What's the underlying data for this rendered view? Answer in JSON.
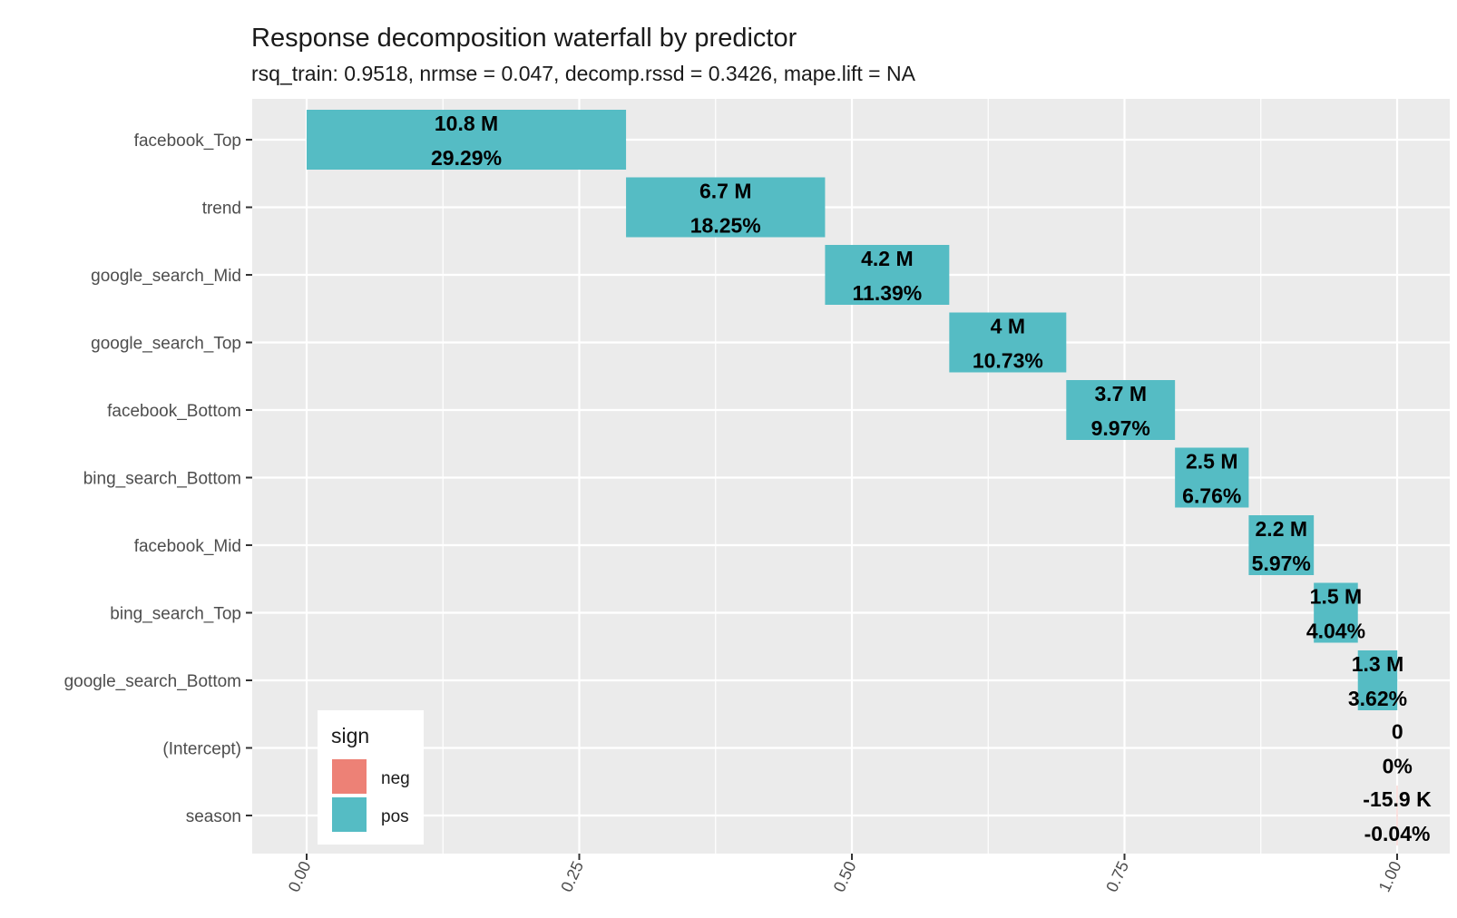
{
  "chart_data": {
    "type": "bar",
    "orientation": "horizontal-waterfall",
    "title": "Response decomposition waterfall by predictor",
    "subtitle": "rsq_train: 0.9518, nrmse = 0.047, decomp.rssd = 0.3426, mape.lift = NA",
    "xlabel": "",
    "ylabel": "",
    "xlim": [
      0,
      1
    ],
    "x_ticks": [
      "0.00",
      "0.25",
      "0.50",
      "0.75",
      "1.00"
    ],
    "grid": true,
    "legend": {
      "title": "sign",
      "position": "bottom-left",
      "entries": [
        {
          "label": "neg",
          "color": "#ED8176"
        },
        {
          "label": "pos",
          "color": "#55BCC4"
        }
      ]
    },
    "categories": [
      "facebook_Top",
      "trend",
      "google_search_Mid",
      "google_search_Top",
      "facebook_Bottom",
      "bing_search_Bottom",
      "facebook_Mid",
      "bing_search_Top",
      "google_search_Bottom",
      "(Intercept)",
      "season"
    ],
    "series": [
      {
        "name": "sign",
        "bars": [
          {
            "predictor": "facebook_Top",
            "start": 0.0,
            "end": 0.2929,
            "value_label": "10.8 M",
            "pct_label": "29.29%",
            "sign": "pos"
          },
          {
            "predictor": "trend",
            "start": 0.2929,
            "end": 0.4754,
            "value_label": "6.7 M",
            "pct_label": "18.25%",
            "sign": "pos"
          },
          {
            "predictor": "google_search_Mid",
            "start": 0.4754,
            "end": 0.5893,
            "value_label": "4.2 M",
            "pct_label": "11.39%",
            "sign": "pos"
          },
          {
            "predictor": "google_search_Top",
            "start": 0.5893,
            "end": 0.6966,
            "value_label": "4 M",
            "pct_label": "10.73%",
            "sign": "pos"
          },
          {
            "predictor": "facebook_Bottom",
            "start": 0.6966,
            "end": 0.7963,
            "value_label": "3.7 M",
            "pct_label": "9.97%",
            "sign": "pos"
          },
          {
            "predictor": "bing_search_Bottom",
            "start": 0.7963,
            "end": 0.8639,
            "value_label": "2.5 M",
            "pct_label": "6.76%",
            "sign": "pos"
          },
          {
            "predictor": "facebook_Mid",
            "start": 0.8639,
            "end": 0.9236,
            "value_label": "2.2 M",
            "pct_label": "5.97%",
            "sign": "pos"
          },
          {
            "predictor": "bing_search_Top",
            "start": 0.9236,
            "end": 0.964,
            "value_label": "1.5 M",
            "pct_label": "4.04%",
            "sign": "pos"
          },
          {
            "predictor": "google_search_Bottom",
            "start": 0.964,
            "end": 1.0002,
            "value_label": "1.3 M",
            "pct_label": "3.62%",
            "sign": "pos"
          },
          {
            "predictor": "(Intercept)",
            "start": 1.0002,
            "end": 1.0002,
            "value_label": "0",
            "pct_label": "0%",
            "sign": "pos"
          },
          {
            "predictor": "season",
            "start": 1.0002,
            "end": 0.9998,
            "value_label": "-15.9 K",
            "pct_label": "-0.04%",
            "sign": "neg"
          }
        ]
      }
    ]
  }
}
